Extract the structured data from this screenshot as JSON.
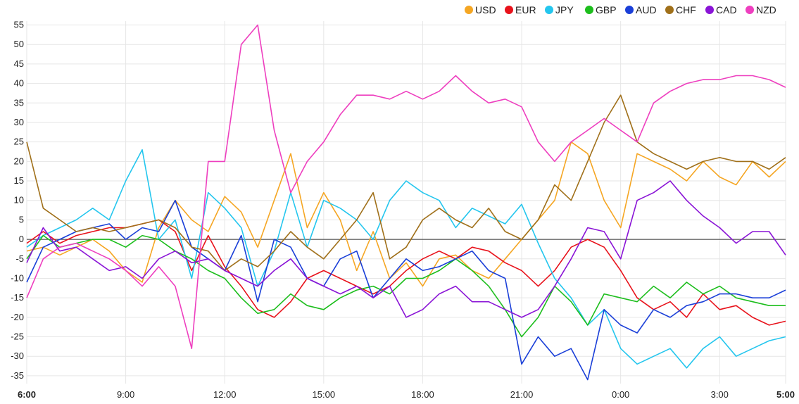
{
  "chart_data": {
    "type": "line",
    "title": "",
    "xlabel": "",
    "ylabel": "",
    "ylim": [
      -37,
      56
    ],
    "yticks": [
      -35,
      -30,
      -25,
      -20,
      -15,
      -10,
      -5,
      0,
      5,
      10,
      15,
      20,
      25,
      30,
      35,
      40,
      45,
      50,
      55
    ],
    "xlim": [
      0,
      23
    ],
    "x_ticks": [
      {
        "x": 0,
        "label": "6:00",
        "bold": true
      },
      {
        "x": 3,
        "label": "9:00",
        "bold": false
      },
      {
        "x": 6,
        "label": "12:00",
        "bold": false
      },
      {
        "x": 9,
        "label": "15:00",
        "bold": false
      },
      {
        "x": 12,
        "label": "18:00",
        "bold": false
      },
      {
        "x": 15,
        "label": "21:00",
        "bold": false
      },
      {
        "x": 18,
        "label": "0:00",
        "bold": false
      },
      {
        "x": 21,
        "label": "3:00",
        "bold": false
      },
      {
        "x": 23,
        "label": "5:00",
        "bold": true
      }
    ],
    "grid": true,
    "legend_position": "top-right",
    "series": [
      {
        "name": "USD",
        "color": "#f5a623",
        "x": [
          0,
          0.5,
          1,
          1.5,
          2,
          2.5,
          3,
          3.5,
          4,
          4.5,
          5,
          5.5,
          6,
          6.5,
          7,
          7.5,
          8,
          8.5,
          9,
          9.5,
          10,
          10.5,
          11,
          11.5,
          12,
          12.5,
          13,
          13.5,
          14,
          14.5,
          15,
          15.5,
          16,
          16.5,
          17,
          17.5,
          18,
          18.5,
          19,
          19.5,
          20,
          20.5,
          21,
          21.5,
          22,
          22.5,
          23
        ],
        "values": [
          -3,
          -2,
          -4,
          -2,
          0,
          -3,
          -8,
          -11,
          3,
          10,
          5,
          2,
          11,
          7,
          -2,
          10,
          22,
          3,
          12,
          5,
          -8,
          2,
          -10,
          -6,
          -12,
          -5,
          -4,
          -8,
          -10,
          -5,
          0,
          5,
          10,
          25,
          22,
          10,
          3,
          22,
          20,
          18,
          15,
          20,
          16,
          14,
          20,
          16,
          20
        ]
      },
      {
        "name": "EUR",
        "color": "#e8121b",
        "x": [
          0,
          0.5,
          1,
          1.5,
          2,
          2.5,
          3,
          3.5,
          4,
          4.5,
          5,
          5.5,
          6,
          6.5,
          7,
          7.5,
          8,
          8.5,
          9,
          9.5,
          10,
          10.5,
          11,
          11.5,
          12,
          12.5,
          13,
          13.5,
          14,
          14.5,
          15,
          15.5,
          16,
          16.5,
          17,
          17.5,
          18,
          18.5,
          19,
          19.5,
          20,
          20.5,
          21,
          21.5,
          22,
          22.5,
          23
        ],
        "values": [
          -1,
          2,
          -1,
          1,
          2,
          3,
          3,
          4,
          5,
          2,
          -8,
          1,
          -7,
          -12,
          -18,
          -20,
          -16,
          -10,
          -8,
          -10,
          -12,
          -14,
          -12,
          -8,
          -5,
          -3,
          -5,
          -2,
          -3,
          -6,
          -8,
          -12,
          -8,
          -2,
          0,
          -2,
          -8,
          -15,
          -18,
          -16,
          -20,
          -14,
          -18,
          -17,
          -20,
          -22,
          -21
        ]
      },
      {
        "name": "JPY",
        "color": "#24c6ee",
        "x": [
          0,
          0.5,
          1,
          1.5,
          2,
          2.5,
          3,
          3.5,
          4,
          4.5,
          5,
          5.5,
          6,
          6.5,
          7,
          7.5,
          8,
          8.5,
          9,
          9.5,
          10,
          10.5,
          11,
          11.5,
          12,
          12.5,
          13,
          13.5,
          14,
          14.5,
          15,
          15.5,
          16,
          16.5,
          17,
          17.5,
          18,
          18.5,
          19,
          19.5,
          20,
          20.5,
          21,
          21.5,
          22,
          22.5,
          23
        ],
        "values": [
          -2,
          1,
          3,
          5,
          8,
          5,
          15,
          23,
          0,
          5,
          -10,
          12,
          8,
          3,
          -12,
          -3,
          12,
          -2,
          10,
          8,
          5,
          0,
          10,
          15,
          12,
          10,
          3,
          8,
          6,
          4,
          9,
          -1,
          -10,
          -15,
          -22,
          -18,
          -28,
          -32,
          -30,
          -28,
          -33,
          -28,
          -25,
          -30,
          -28,
          -26,
          -25
        ]
      },
      {
        "name": "GBP",
        "color": "#1dbe1d",
        "x": [
          0,
          0.5,
          1,
          1.5,
          2,
          2.5,
          3,
          3.5,
          4,
          4.5,
          5,
          5.5,
          6,
          6.5,
          7,
          7.5,
          8,
          8.5,
          9,
          9.5,
          10,
          10.5,
          11,
          11.5,
          12,
          12.5,
          13,
          13.5,
          14,
          14.5,
          15,
          15.5,
          16,
          16.5,
          17,
          17.5,
          18,
          18.5,
          19,
          19.5,
          20,
          20.5,
          21,
          21.5,
          22,
          22.5,
          23
        ],
        "values": [
          -5,
          1,
          -2,
          -1,
          0,
          0,
          -2,
          1,
          0,
          -3,
          -5,
          -8,
          -10,
          -15,
          -19,
          -18,
          -14,
          -17,
          -18,
          -15,
          -13,
          -12,
          -14,
          -10,
          -10,
          -8,
          -5,
          -8,
          -12,
          -18,
          -25,
          -20,
          -12,
          -16,
          -22,
          -14,
          -15,
          -16,
          -12,
          -15,
          -11,
          -14,
          -12,
          -15,
          -16,
          -17,
          -17
        ]
      },
      {
        "name": "AUD",
        "color": "#1a3fd8",
        "x": [
          0,
          0.5,
          1,
          1.5,
          2,
          2.5,
          3,
          3.5,
          4,
          4.5,
          5,
          5.5,
          6,
          6.5,
          7,
          7.5,
          8,
          8.5,
          9,
          9.5,
          10,
          10.5,
          11,
          11.5,
          12,
          12.5,
          13,
          13.5,
          14,
          14.5,
          15,
          15.5,
          16,
          16.5,
          17,
          17.5,
          18,
          18.5,
          19,
          19.5,
          20,
          20.5,
          21,
          21.5,
          22,
          22.5,
          23
        ],
        "values": [
          -11,
          -2,
          0,
          2,
          3,
          4,
          0,
          3,
          2,
          10,
          -2,
          -5,
          -8,
          1,
          -16,
          0,
          -2,
          -10,
          -12,
          -5,
          -3,
          -15,
          -10,
          -5,
          -8,
          -7,
          -5,
          -3,
          -8,
          -10,
          -32,
          -25,
          -30,
          -28,
          -36,
          -18,
          -22,
          -24,
          -18,
          -20,
          -17,
          -16,
          -14,
          -14,
          -15,
          -15,
          -13
        ]
      },
      {
        "name": "CHF",
        "color": "#a0701a",
        "x": [
          0,
          0.5,
          1,
          1.5,
          2,
          2.5,
          3,
          3.5,
          4,
          4.5,
          5,
          5.5,
          6,
          6.5,
          7,
          7.5,
          8,
          8.5,
          9,
          9.5,
          10,
          10.5,
          11,
          11.5,
          12,
          12.5,
          13,
          13.5,
          14,
          14.5,
          15,
          15.5,
          16,
          16.5,
          17,
          17.5,
          18,
          18.5,
          19,
          19.5,
          20,
          20.5,
          21,
          21.5,
          22,
          22.5,
          23
        ],
        "values": [
          25,
          8,
          5,
          2,
          3,
          2,
          3,
          4,
          5,
          3,
          -2,
          -3,
          -8,
          -5,
          -7,
          -3,
          2,
          -2,
          -5,
          0,
          5,
          12,
          -5,
          -2,
          5,
          8,
          5,
          3,
          8,
          2,
          0,
          5,
          14,
          10,
          20,
          30,
          37,
          25,
          22,
          20,
          18,
          20,
          21,
          20,
          20,
          18,
          21
        ]
      },
      {
        "name": "CAD",
        "color": "#8a14d6",
        "x": [
          0,
          0.5,
          1,
          1.5,
          2,
          2.5,
          3,
          3.5,
          4,
          4.5,
          5,
          5.5,
          6,
          6.5,
          7,
          7.5,
          8,
          8.5,
          9,
          9.5,
          10,
          10.5,
          11,
          11.5,
          12,
          12.5,
          13,
          13.5,
          14,
          14.5,
          15,
          15.5,
          16,
          16.5,
          17,
          17.5,
          18,
          18.5,
          19,
          19.5,
          20,
          20.5,
          21,
          21.5,
          22,
          22.5,
          23
        ],
        "values": [
          -6,
          3,
          -3,
          -2,
          -5,
          -8,
          -7,
          -10,
          -5,
          -3,
          -6,
          -5,
          -8,
          -10,
          -12,
          -8,
          -5,
          -10,
          -12,
          -14,
          -12,
          -15,
          -12,
          -20,
          -18,
          -14,
          -12,
          -16,
          -16,
          -18,
          -20,
          -18,
          -12,
          -5,
          3,
          2,
          -5,
          10,
          12,
          15,
          10,
          6,
          3,
          -1,
          2,
          2,
          -4
        ]
      },
      {
        "name": "NZD",
        "color": "#ee3fbf",
        "x": [
          0,
          0.5,
          1,
          1.5,
          2,
          2.5,
          3,
          3.5,
          4,
          4.5,
          5,
          5.5,
          6,
          6.5,
          7,
          7.5,
          8,
          8.5,
          9,
          9.5,
          10,
          10.5,
          11,
          11.5,
          12,
          12.5,
          13,
          13.5,
          14,
          14.5,
          15,
          15.5,
          16,
          16.5,
          17,
          17.5,
          18,
          18.5,
          19,
          19.5,
          20,
          20.5,
          21,
          21.5,
          22,
          22.5,
          23
        ],
        "values": [
          -15,
          -5,
          -2,
          -1,
          -3,
          -5,
          -8,
          -12,
          -7,
          -12,
          -28,
          20,
          20,
          50,
          55,
          28,
          12,
          20,
          25,
          32,
          37,
          37,
          36,
          38,
          36,
          38,
          42,
          38,
          35,
          36,
          34,
          25,
          20,
          25,
          28,
          31,
          28,
          25,
          35,
          38,
          40,
          41,
          41,
          42,
          42,
          41,
          39
        ]
      }
    ]
  }
}
